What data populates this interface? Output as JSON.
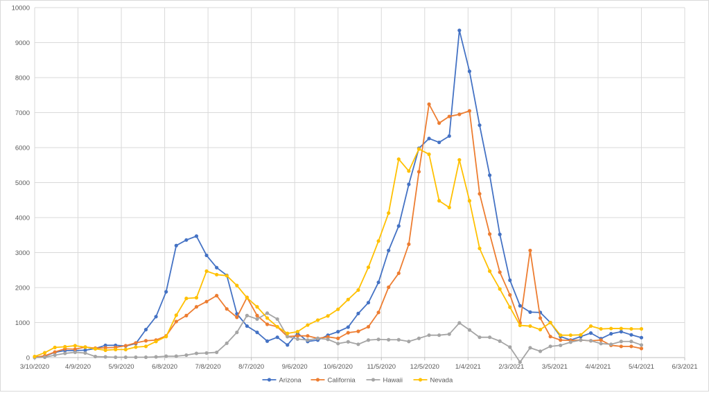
{
  "chart_data": {
    "type": "line",
    "title": "",
    "xlabel": "",
    "ylabel": "",
    "grid": true,
    "legend_position": "bottom",
    "ylim": [
      0,
      10000
    ],
    "yticks": [
      0,
      1000,
      2000,
      3000,
      4000,
      5000,
      6000,
      7000,
      8000,
      9000,
      10000
    ],
    "xlim": [
      "3/10/2020",
      "6/3/2021"
    ],
    "xticks": [
      "3/10/2020",
      "4/9/2020",
      "5/9/2020",
      "6/8/2020",
      "7/8/2020",
      "8/7/2020",
      "9/6/2020",
      "10/6/2020",
      "11/5/2020",
      "12/5/2020",
      "1/4/2021",
      "2/3/2021",
      "3/5/2021",
      "4/4/2021",
      "5/4/2021",
      "6/3/2021"
    ],
    "x_dates": [
      "3/10/2020",
      "3/17/2020",
      "3/24/2020",
      "3/31/2020",
      "4/7/2020",
      "4/14/2020",
      "4/21/2020",
      "4/28/2020",
      "5/5/2020",
      "5/12/2020",
      "5/19/2020",
      "5/26/2020",
      "6/2/2020",
      "6/9/2020",
      "6/16/2020",
      "6/23/2020",
      "6/30/2020",
      "7/7/2020",
      "7/14/2020",
      "7/21/2020",
      "7/28/2020",
      "8/4/2020",
      "8/11/2020",
      "8/18/2020",
      "8/25/2020",
      "9/1/2020",
      "9/8/2020",
      "9/15/2020",
      "9/22/2020",
      "9/29/2020",
      "10/6/2020",
      "10/13/2020",
      "10/20/2020",
      "10/27/2020",
      "11/3/2020",
      "11/10/2020",
      "11/17/2020",
      "11/24/2020",
      "12/1/2020",
      "12/8/2020",
      "12/15/2020",
      "12/22/2020",
      "12/29/2020",
      "1/5/2021",
      "1/12/2021",
      "1/19/2021",
      "1/26/2021",
      "2/2/2021",
      "2/9/2021",
      "2/16/2021",
      "2/23/2021",
      "3/2/2021",
      "3/9/2021",
      "3/16/2021",
      "3/23/2021",
      "3/30/2021",
      "4/6/2021",
      "4/13/2021",
      "4/20/2021",
      "4/27/2021",
      "5/4/2021"
    ],
    "series": [
      {
        "name": "Arizona",
        "color": "#4472C4",
        "values": [
          10,
          40,
          150,
          200,
          200,
          210,
          260,
          350,
          350,
          330,
          400,
          800,
          1170,
          1880,
          3200,
          3360,
          3470,
          2920,
          2570,
          2350,
          1250,
          900,
          720,
          470,
          580,
          360,
          700,
          460,
          500,
          640,
          740,
          870,
          1260,
          1570,
          2150,
          3060,
          3760,
          4950,
          5980,
          6260,
          6150,
          6330,
          9350,
          8180,
          6640,
          5210,
          3520,
          2210,
          1480,
          1300,
          1290,
          1000,
          600,
          500,
          600,
          700,
          540,
          680,
          740,
          650,
          570
        ]
      },
      {
        "name": "California",
        "color": "#ED7D31",
        "values": [
          10,
          50,
          160,
          250,
          240,
          300,
          270,
          280,
          290,
          340,
          420,
          480,
          500,
          620,
          1030,
          1200,
          1450,
          1600,
          1770,
          1390,
          1150,
          1720,
          1200,
          950,
          880,
          600,
          620,
          620,
          550,
          590,
          550,
          710,
          750,
          880,
          1290,
          2010,
          2410,
          3240,
          5310,
          7240,
          6700,
          6890,
          6950,
          7050,
          4680,
          3530,
          2440,
          1790,
          990,
          3060,
          1130,
          600,
          500,
          490,
          500,
          480,
          500,
          350,
          320,
          320,
          260
        ]
      },
      {
        "name": "Hawaii",
        "color": "#A5A5A5",
        "values": [
          0,
          10,
          70,
          120,
          150,
          130,
          30,
          20,
          10,
          10,
          10,
          10,
          20,
          40,
          40,
          70,
          120,
          130,
          150,
          410,
          720,
          1200,
          1100,
          1270,
          1100,
          600,
          530,
          500,
          550,
          520,
          400,
          450,
          380,
          500,
          520,
          510,
          510,
          460,
          550,
          640,
          640,
          670,
          990,
          790,
          580,
          580,
          470,
          300,
          -130,
          280,
          180,
          320,
          350,
          440,
          500,
          480,
          400,
          380,
          460,
          460,
          360
        ]
      },
      {
        "name": "Nevada",
        "color": "#FFC000",
        "values": [
          30,
          140,
          290,
          310,
          340,
          300,
          250,
          210,
          230,
          230,
          300,
          320,
          460,
          600,
          1210,
          1690,
          1710,
          2470,
          2370,
          2340,
          2060,
          1710,
          1450,
          1130,
          880,
          690,
          740,
          930,
          1070,
          1190,
          1380,
          1660,
          1930,
          2580,
          3330,
          4130,
          5670,
          5330,
          5960,
          5810,
          4480,
          4290,
          5650,
          4480,
          3120,
          2470,
          1960,
          1440,
          920,
          900,
          800,
          1000,
          640,
          640,
          650,
          900,
          820,
          830,
          830,
          820,
          820
        ]
      }
    ]
  }
}
